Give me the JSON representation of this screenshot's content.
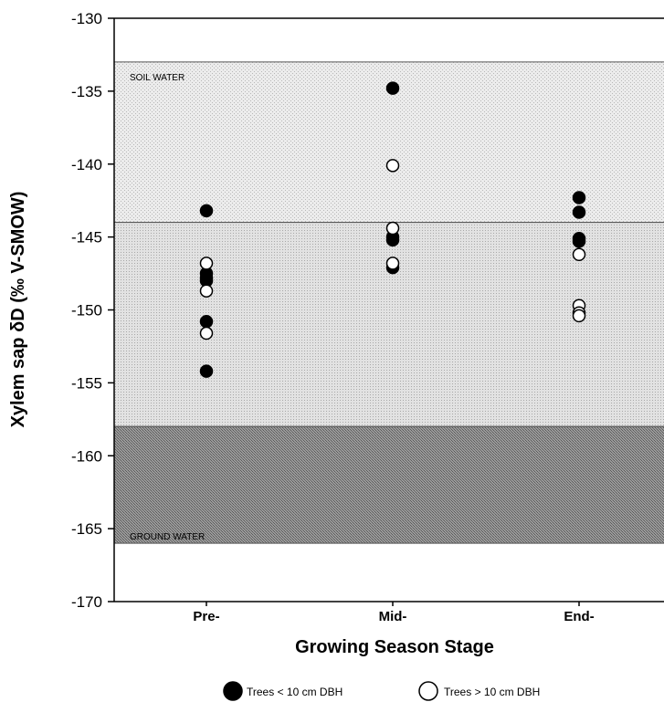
{
  "chart_data": {
    "type": "scatter",
    "title": "",
    "xlabel": "Growing Season Stage",
    "ylabel": "Xylem sap δD (‰ V-SMOW)",
    "categories": [
      "Pre-",
      "Mid-",
      "End-"
    ],
    "ylim": [
      -170,
      -130
    ],
    "yticks": [
      -130,
      -135,
      -140,
      -145,
      -150,
      -155,
      -160,
      -165,
      -170
    ],
    "grid": false,
    "legend_position": "bottom",
    "bands": [
      {
        "label": "SOIL WATER",
        "from": -144,
        "to": -133,
        "fill": "#e6e6e6",
        "pattern": "light-dots"
      },
      {
        "label": "",
        "from": -158,
        "to": -144,
        "fill": "#dcdcdc",
        "pattern": "dots"
      },
      {
        "label": "GROUND WATER",
        "from": -166,
        "to": -158,
        "fill": "#8c8c8c",
        "pattern": "dark-hatch"
      }
    ],
    "series": [
      {
        "name": "Trees < 10 cm DBH",
        "marker": "filled-circle",
        "color": "#000000",
        "points": [
          {
            "x": "Pre-",
            "y": -143.2
          },
          {
            "x": "Pre-",
            "y": -147.5
          },
          {
            "x": "Pre-",
            "y": -147.8
          },
          {
            "x": "Pre-",
            "y": -148.0
          },
          {
            "x": "Pre-",
            "y": -150.8
          },
          {
            "x": "Pre-",
            "y": -154.2
          },
          {
            "x": "Mid-",
            "y": -134.8
          },
          {
            "x": "Mid-",
            "y": -145.0
          },
          {
            "x": "Mid-",
            "y": -145.2
          },
          {
            "x": "Mid-",
            "y": -147.1
          },
          {
            "x": "End-",
            "y": -142.3
          },
          {
            "x": "End-",
            "y": -143.3
          },
          {
            "x": "End-",
            "y": -145.1
          },
          {
            "x": "End-",
            "y": -145.3
          }
        ]
      },
      {
        "name": "Trees > 10 cm DBH",
        "marker": "open-circle",
        "color": "#000000",
        "points": [
          {
            "x": "Pre-",
            "y": -146.8
          },
          {
            "x": "Pre-",
            "y": -148.7
          },
          {
            "x": "Pre-",
            "y": -151.6
          },
          {
            "x": "Mid-",
            "y": -140.1
          },
          {
            "x": "Mid-",
            "y": -144.4
          },
          {
            "x": "Mid-",
            "y": -146.8
          },
          {
            "x": "End-",
            "y": -146.2
          },
          {
            "x": "End-",
            "y": -149.7
          },
          {
            "x": "End-",
            "y": -150.2
          },
          {
            "x": "End-",
            "y": -150.4
          }
        ]
      }
    ]
  }
}
